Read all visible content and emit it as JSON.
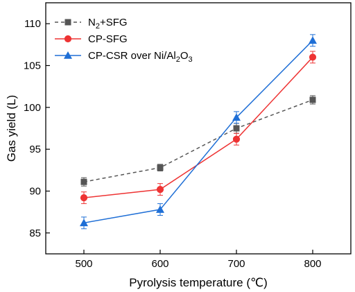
{
  "chart_data": {
    "type": "line",
    "title": "",
    "xlabel": "Pyrolysis temperature (℃)",
    "ylabel": "Gas yield (L)",
    "x": [
      500,
      600,
      700,
      800
    ],
    "xlim": [
      450,
      850
    ],
    "ylim": [
      82.5,
      112.5
    ],
    "xticks": [
      "500",
      "600",
      "700",
      "800"
    ],
    "yticks": [
      "85",
      "90",
      "95",
      "100",
      "105",
      "110"
    ],
    "grid": false,
    "legend_position": "top-left",
    "series": [
      {
        "name": "N2+SFG",
        "legend_main": "N",
        "legend_sub": "2",
        "legend_rest": "+SFG",
        "values": [
          91.1,
          92.8,
          97.5,
          100.9
        ],
        "errors": [
          0.5,
          0.4,
          0.6,
          0.5
        ],
        "color": "#555555",
        "marker": "square",
        "dashed": true
      },
      {
        "name": "CP-SFG",
        "legend_main": "CP-SFG",
        "values": [
          89.2,
          90.2,
          96.2,
          106.0
        ],
        "errors": [
          0.7,
          0.7,
          0.7,
          0.7
        ],
        "color": "#ee3333",
        "marker": "circle",
        "dashed": false
      },
      {
        "name": "CP-CSR over Ni/Al2O3",
        "legend_main": "CP-CSR over Ni/Al",
        "legend_sub": "2",
        "legend_rest": "O",
        "legend_sub2": "3",
        "values": [
          86.2,
          87.8,
          98.8,
          108.0
        ],
        "errors": [
          0.7,
          0.7,
          0.7,
          0.7
        ],
        "color": "#1f6fd6",
        "marker": "triangle",
        "dashed": false
      }
    ]
  }
}
